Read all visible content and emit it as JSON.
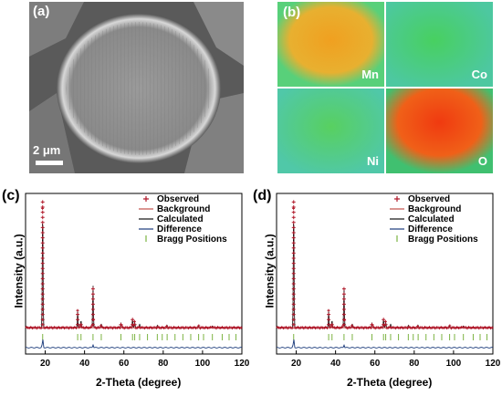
{
  "panel_a": {
    "label": "(a)",
    "scale_bar": "2 μm"
  },
  "panel_b": {
    "label": "(b)",
    "maps": [
      {
        "element": "Mn",
        "core": "#f0a020",
        "bg": "#58d07a"
      },
      {
        "element": "Co",
        "core": "#48d060",
        "bg": "#4dc8a0"
      },
      {
        "element": "Ni",
        "core": "#58d060",
        "bg": "#50c8a8"
      },
      {
        "element": "O",
        "core": "#f03a10",
        "bg": "#40c070"
      }
    ]
  },
  "panel_c": {
    "label": "(c)"
  },
  "panel_d": {
    "label": "(d)"
  },
  "axes": {
    "ylabel": "Intensity (a.u.)",
    "xlabel": "2-Theta (degree)"
  },
  "legend": [
    "Observed",
    "Background",
    "Calculated",
    "Difference",
    "Bragg Positions"
  ],
  "colors": {
    "observed": "#b0182a",
    "background": "#c0504a",
    "calculated": "#111111",
    "difference": "#1a3a7a",
    "bragg": "#7cb342"
  },
  "chart_data": [
    {
      "type": "line",
      "xlabel": "2-Theta (degree)",
      "ylabel": "Intensity (a.u.)",
      "xlim": [
        10,
        120
      ],
      "xticks": [
        20,
        40,
        60,
        80,
        100,
        120
      ],
      "peaks": [
        {
          "x": 18.7,
          "y": 100
        },
        {
          "x": 36.5,
          "y": 14
        },
        {
          "x": 38.2,
          "y": 6
        },
        {
          "x": 44.3,
          "y": 34
        },
        {
          "x": 48.5,
          "y": 3
        },
        {
          "x": 58.5,
          "y": 4
        },
        {
          "x": 64.4,
          "y": 7
        },
        {
          "x": 65.5,
          "y": 5
        },
        {
          "x": 68.0,
          "y": 3
        },
        {
          "x": 77.0,
          "y": 2
        },
        {
          "x": 82.0,
          "y": 2
        },
        {
          "x": 98.0,
          "y": 1.5
        },
        {
          "x": 105.0,
          "y": 1.5
        }
      ],
      "bragg_positions": [
        18.7,
        36.5,
        38.2,
        44.3,
        48.5,
        58.5,
        64.4,
        65.5,
        68.0,
        72.0,
        77.0,
        79.5,
        82.0,
        86.0,
        90.0,
        94.0,
        98.0,
        100.5,
        105.0,
        110.0,
        113.5,
        117.0
      ]
    },
    {
      "type": "line",
      "xlabel": "2-Theta (degree)",
      "ylabel": "Intensity (a.u.)",
      "xlim": [
        10,
        120
      ],
      "xticks": [
        20,
        40,
        60,
        80,
        100,
        120
      ],
      "peaks": [
        {
          "x": 18.7,
          "y": 100
        },
        {
          "x": 36.5,
          "y": 14
        },
        {
          "x": 38.2,
          "y": 6
        },
        {
          "x": 44.3,
          "y": 32
        },
        {
          "x": 48.5,
          "y": 3
        },
        {
          "x": 58.5,
          "y": 4
        },
        {
          "x": 64.4,
          "y": 7
        },
        {
          "x": 65.5,
          "y": 5
        },
        {
          "x": 68.0,
          "y": 3
        },
        {
          "x": 77.0,
          "y": 2
        },
        {
          "x": 82.0,
          "y": 2
        },
        {
          "x": 98.0,
          "y": 1.5
        },
        {
          "x": 105.0,
          "y": 1.5
        }
      ],
      "bragg_positions": [
        18.7,
        36.5,
        38.2,
        44.3,
        48.5,
        58.5,
        64.4,
        65.5,
        68.0,
        72.0,
        77.0,
        79.5,
        82.0,
        86.0,
        90.0,
        94.0,
        98.0,
        100.5,
        105.0,
        110.0,
        113.5,
        117.0
      ]
    }
  ]
}
